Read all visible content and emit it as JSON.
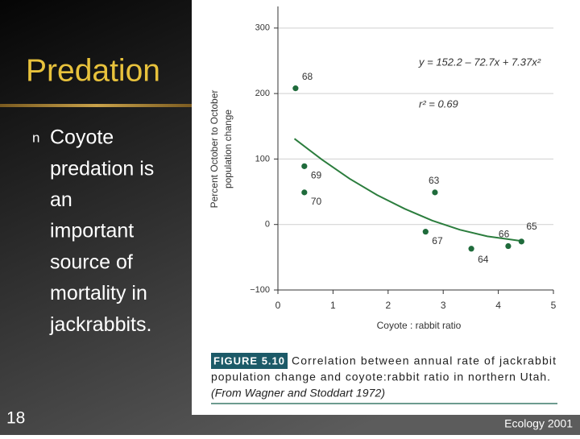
{
  "slide": {
    "title": "Predation",
    "bullet_marker": "n",
    "body_lines": [
      "Coyote",
      "predation is",
      "an",
      "important",
      "source of",
      "mortality in",
      "jackrabbits."
    ],
    "slide_number": "18",
    "footer": "Ecology 2001"
  },
  "chart_data": {
    "type": "scatter",
    "y_label_lines": [
      "Percent October to October",
      "population change"
    ],
    "x_label": "Coyote : rabbit ratio",
    "equation": "y = 152.2 – 72.7x + 7.37x²",
    "r_squared": "r² = 0.69",
    "figure_tag": "FIGURE 5.10",
    "caption_lines": [
      "Correlation between annual rate of jackrabbit",
      "population change and coyote:rabbit ratio in northern Utah.",
      "(From Wagner and Stoddart 1972)"
    ],
    "xlim": [
      0,
      5
    ],
    "ylim": [
      -100,
      333
    ],
    "xticks": [
      0,
      1,
      2,
      3,
      4,
      5
    ],
    "yticks": [
      {
        "value": -100,
        "label": "−100"
      },
      0,
      100,
      200,
      300
    ],
    "grid": true,
    "points": {
      "name": null,
      "color": "#1f6b3b",
      "labels": [
        "68",
        "69",
        "70",
        "63",
        "67",
        "64",
        "66",
        "65"
      ],
      "x": [
        0.32,
        0.48,
        0.48,
        2.85,
        2.68,
        3.51,
        4.18,
        4.42
      ],
      "values": [
        208,
        89,
        49,
        49,
        -11,
        -37,
        -33,
        -26
      ]
    },
    "fit": {
      "color": "#2b7d3d",
      "x": [
        0.3,
        0.8,
        1.3,
        1.8,
        2.3,
        2.8,
        3.3,
        3.8,
        4.4
      ],
      "values": [
        131,
        99,
        70,
        45,
        24,
        6,
        -8,
        -18,
        -25
      ]
    }
  }
}
